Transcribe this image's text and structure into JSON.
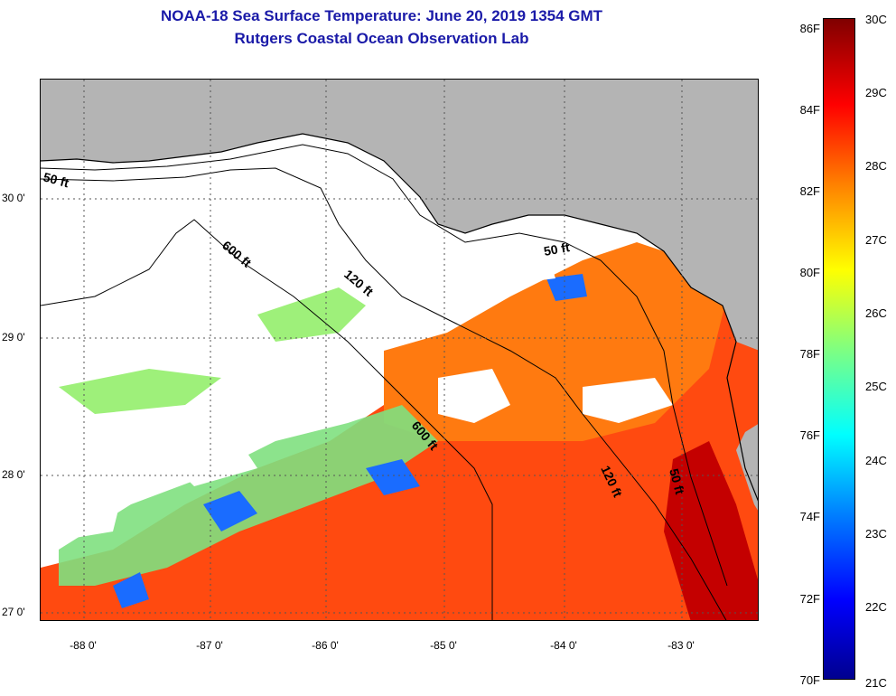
{
  "title": {
    "line1": "NOAA-18 Sea Surface Temperature:  June 20, 2019 1354 GMT",
    "line2": "Rutgers Coastal Ocean Observation Lab"
  },
  "map": {
    "latitude_labels": [
      "30 0'",
      "29 0'",
      "28 0'",
      "27 0'"
    ],
    "longitude_labels": [
      "-88 0'",
      "-87 0'",
      "-86 0'",
      "-85 0'",
      "-84 0'",
      "-83 0'"
    ],
    "depth_contour_labels": [
      "50 ft",
      "600 ft",
      "120 ft",
      "50 ft",
      "600 ft",
      "120 ft",
      "50 ft"
    ],
    "colors": {
      "land": "#b4b4b4",
      "cloud": "#ffffff",
      "warm": "#ff3a00",
      "hot": "#c80000",
      "mid": "#ff9a00",
      "cool": "#8ff08f",
      "cold": "#1060ff"
    }
  },
  "colorbar": {
    "fahrenheit": [
      "86F",
      "84F",
      "82F",
      "80F",
      "78F",
      "76F",
      "74F",
      "72F",
      "70F"
    ],
    "celsius": [
      "30C",
      "29C",
      "28C",
      "27C",
      "26C",
      "25C",
      "24C",
      "23C",
      "22C",
      "21C"
    ]
  }
}
